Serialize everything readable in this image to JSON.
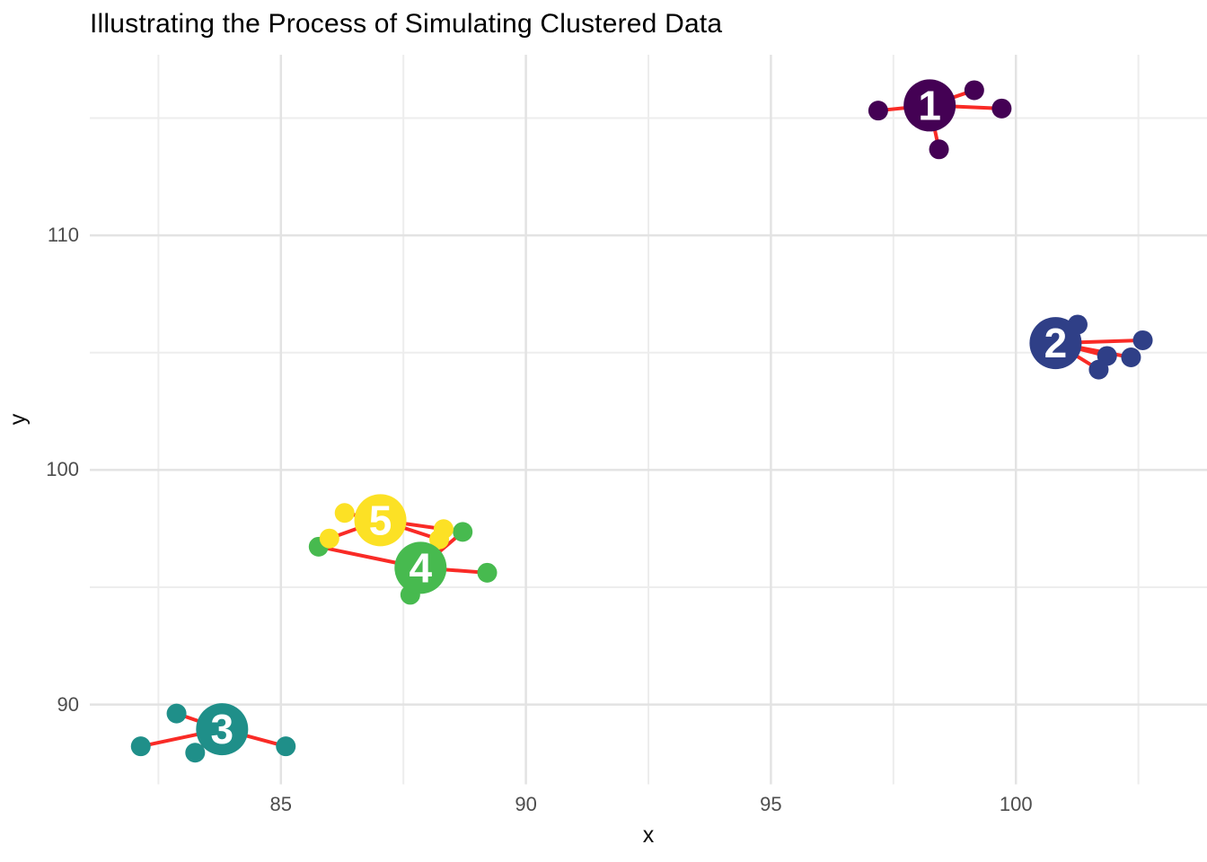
{
  "title": "Illustrating the Process of Simulating Clustered Data",
  "chart_data": {
    "type": "scatter",
    "title": "Illustrating the Process of Simulating Clustered Data",
    "xlabel": "x",
    "ylabel": "y",
    "xlim": [
      81.1,
      103.9
    ],
    "ylim": [
      86.6,
      117.7
    ],
    "x_ticks": [
      85,
      90,
      95,
      100
    ],
    "y_ticks": [
      90,
      100,
      110
    ],
    "x_minor_ticks": [
      82.5,
      87.5,
      92.5,
      97.5,
      102.5
    ],
    "y_minor_ticks": [
      95,
      105,
      115
    ],
    "grid": "on",
    "legend": "none",
    "description": "Five cluster centroids (numbered 1-5, viridis colors) with simulated member points connected to their centroid by red segments",
    "clusters": [
      {
        "id": "1",
        "color": "#440154",
        "center": {
          "x": 98.24,
          "y": 115.54
        },
        "points": [
          {
            "x": 97.19,
            "y": 115.32
          },
          {
            "x": 99.15,
            "y": 116.19
          },
          {
            "x": 99.71,
            "y": 115.41
          },
          {
            "x": 98.43,
            "y": 113.67
          }
        ]
      },
      {
        "id": "2",
        "color": "#2F3F87",
        "center": {
          "x": 100.81,
          "y": 105.41
        },
        "points": [
          {
            "x": 101.26,
            "y": 106.2
          },
          {
            "x": 101.86,
            "y": 104.86
          },
          {
            "x": 102.35,
            "y": 104.8
          },
          {
            "x": 101.69,
            "y": 104.28
          },
          {
            "x": 102.59,
            "y": 105.53
          }
        ]
      },
      {
        "id": "3",
        "color": "#1F8F89",
        "center": {
          "x": 83.8,
          "y": 88.95
        },
        "points": [
          {
            "x": 82.87,
            "y": 89.62
          },
          {
            "x": 82.14,
            "y": 88.22
          },
          {
            "x": 83.25,
            "y": 87.95
          },
          {
            "x": 85.1,
            "y": 88.22
          }
        ]
      },
      {
        "id": "4",
        "color": "#47BA4F",
        "center": {
          "x": 87.85,
          "y": 95.83
        },
        "points": [
          {
            "x": 85.77,
            "y": 96.73
          },
          {
            "x": 88.71,
            "y": 97.36
          },
          {
            "x": 89.21,
            "y": 95.62
          },
          {
            "x": 87.64,
            "y": 94.68
          }
        ]
      },
      {
        "id": "5",
        "color": "#FCE125",
        "center": {
          "x": 87.03,
          "y": 97.86
        },
        "points": [
          {
            "x": 86.3,
            "y": 98.17
          },
          {
            "x": 85.99,
            "y": 97.08
          },
          {
            "x": 88.32,
            "y": 97.48
          },
          {
            "x": 88.23,
            "y": 97.04
          }
        ]
      }
    ],
    "style": {
      "segment_color": "#F92B26",
      "grid_major_color": "#E3E3E3",
      "grid_minor_color": "#EDEDED",
      "background_color": "#FFFFFF",
      "tick_label_color": "#4D4D4D",
      "title_color": "#000000",
      "centroid_label_color": "#FFFFFF"
    }
  }
}
